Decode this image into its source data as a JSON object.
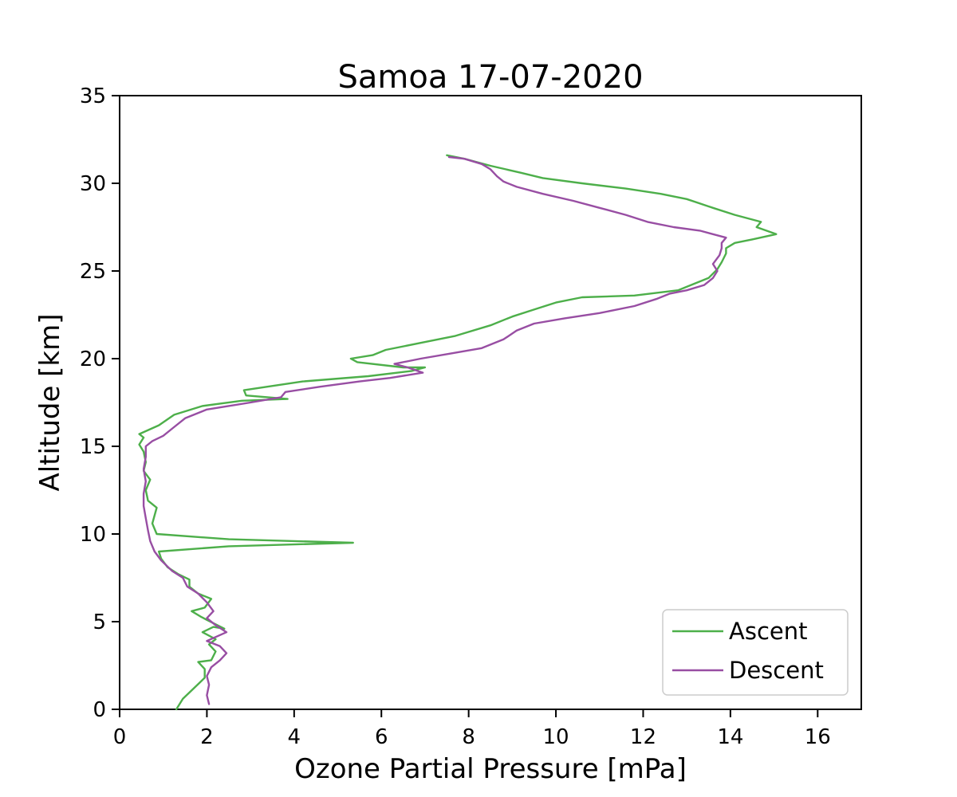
{
  "chart_data": {
    "type": "line",
    "title": "Samoa  17-07-2020",
    "xlabel": "Ozone Partial Pressure [mPa]",
    "ylabel": "Altitude [km]",
    "xlim": [
      0,
      17
    ],
    "ylim": [
      0,
      35
    ],
    "xticks": [
      0,
      2,
      4,
      6,
      8,
      10,
      12,
      14,
      16
    ],
    "yticks": [
      0,
      5,
      10,
      15,
      20,
      25,
      30,
      35
    ],
    "grid": false,
    "legend_position": "lower-right",
    "series": [
      {
        "name": "Ascent",
        "color": "#4daf4a",
        "points": [
          [
            1.3,
            0.0
          ],
          [
            1.45,
            0.6
          ],
          [
            1.7,
            1.2
          ],
          [
            1.95,
            1.8
          ],
          [
            1.95,
            2.3
          ],
          [
            1.8,
            2.7
          ],
          [
            2.1,
            2.8
          ],
          [
            2.2,
            3.3
          ],
          [
            2.05,
            3.7
          ],
          [
            2.2,
            4.0
          ],
          [
            1.9,
            4.4
          ],
          [
            2.15,
            4.7
          ],
          [
            2.4,
            4.6
          ],
          [
            2.0,
            5.1
          ],
          [
            1.85,
            5.3
          ],
          [
            1.65,
            5.6
          ],
          [
            1.95,
            5.8
          ],
          [
            2.1,
            6.3
          ],
          [
            1.8,
            6.6
          ],
          [
            1.6,
            7.0
          ],
          [
            1.6,
            7.4
          ],
          [
            1.35,
            7.7
          ],
          [
            1.1,
            8.1
          ],
          [
            0.95,
            8.6
          ],
          [
            0.9,
            9.0
          ],
          [
            2.5,
            9.3
          ],
          [
            5.35,
            9.5
          ],
          [
            2.5,
            9.7
          ],
          [
            0.85,
            10.0
          ],
          [
            0.75,
            10.6
          ],
          [
            0.85,
            11.5
          ],
          [
            0.65,
            11.9
          ],
          [
            0.6,
            12.5
          ],
          [
            0.7,
            13.1
          ],
          [
            0.55,
            13.6
          ],
          [
            0.6,
            14.1
          ],
          [
            0.55,
            14.7
          ],
          [
            0.45,
            15.1
          ],
          [
            0.55,
            15.5
          ],
          [
            0.45,
            15.7
          ],
          [
            0.9,
            16.2
          ],
          [
            1.25,
            16.8
          ],
          [
            1.9,
            17.3
          ],
          [
            2.8,
            17.6
          ],
          [
            3.85,
            17.7
          ],
          [
            2.9,
            17.9
          ],
          [
            2.85,
            18.2
          ],
          [
            4.2,
            18.7
          ],
          [
            5.7,
            19.0
          ],
          [
            6.7,
            19.3
          ],
          [
            7.0,
            19.5
          ],
          [
            6.5,
            19.5
          ],
          [
            5.45,
            19.8
          ],
          [
            5.3,
            20.0
          ],
          [
            5.8,
            20.2
          ],
          [
            6.1,
            20.5
          ],
          [
            6.9,
            20.9
          ],
          [
            7.7,
            21.3
          ],
          [
            8.5,
            21.9
          ],
          [
            9.0,
            22.4
          ],
          [
            9.5,
            22.8
          ],
          [
            10.0,
            23.2
          ],
          [
            10.6,
            23.5
          ],
          [
            11.8,
            23.6
          ],
          [
            12.8,
            23.9
          ],
          [
            13.2,
            24.3
          ],
          [
            13.5,
            24.6
          ],
          [
            13.7,
            25.1
          ],
          [
            13.8,
            25.5
          ],
          [
            13.9,
            26.0
          ],
          [
            13.9,
            26.3
          ],
          [
            14.1,
            26.6
          ],
          [
            14.5,
            26.8
          ],
          [
            15.05,
            27.1
          ],
          [
            14.6,
            27.5
          ],
          [
            14.7,
            27.8
          ],
          [
            14.1,
            28.2
          ],
          [
            13.6,
            28.6
          ],
          [
            13.0,
            29.1
          ],
          [
            12.4,
            29.4
          ],
          [
            11.6,
            29.7
          ],
          [
            10.6,
            30.0
          ],
          [
            9.7,
            30.3
          ],
          [
            9.2,
            30.6
          ],
          [
            8.5,
            31.0
          ],
          [
            7.9,
            31.4
          ],
          [
            7.5,
            31.6
          ]
        ]
      },
      {
        "name": "Descent",
        "color": "#984ea3",
        "points": [
          [
            2.05,
            0.3
          ],
          [
            2.0,
            0.8
          ],
          [
            2.05,
            1.4
          ],
          [
            2.0,
            1.9
          ],
          [
            2.1,
            2.4
          ],
          [
            2.3,
            2.8
          ],
          [
            2.45,
            3.2
          ],
          [
            2.3,
            3.6
          ],
          [
            2.0,
            3.9
          ],
          [
            2.45,
            4.4
          ],
          [
            2.2,
            4.8
          ],
          [
            2.0,
            5.2
          ],
          [
            2.15,
            5.6
          ],
          [
            2.0,
            6.1
          ],
          [
            1.8,
            6.6
          ],
          [
            1.55,
            7.0
          ],
          [
            1.45,
            7.5
          ],
          [
            1.2,
            7.9
          ],
          [
            0.95,
            8.5
          ],
          [
            0.8,
            9.0
          ],
          [
            0.7,
            9.6
          ],
          [
            0.65,
            10.2
          ],
          [
            0.6,
            10.9
          ],
          [
            0.55,
            11.6
          ],
          [
            0.55,
            12.3
          ],
          [
            0.6,
            13.0
          ],
          [
            0.55,
            13.7
          ],
          [
            0.6,
            14.4
          ],
          [
            0.6,
            15.0
          ],
          [
            0.75,
            15.3
          ],
          [
            1.0,
            15.6
          ],
          [
            1.2,
            16.0
          ],
          [
            1.5,
            16.6
          ],
          [
            2.0,
            17.1
          ],
          [
            3.0,
            17.5
          ],
          [
            3.7,
            17.8
          ],
          [
            3.8,
            18.1
          ],
          [
            4.6,
            18.4
          ],
          [
            5.5,
            18.7
          ],
          [
            6.2,
            18.9
          ],
          [
            6.95,
            19.2
          ],
          [
            6.6,
            19.5
          ],
          [
            6.3,
            19.7
          ],
          [
            6.9,
            20.0
          ],
          [
            7.6,
            20.3
          ],
          [
            8.3,
            20.6
          ],
          [
            8.8,
            21.1
          ],
          [
            9.1,
            21.6
          ],
          [
            9.5,
            22.0
          ],
          [
            10.2,
            22.3
          ],
          [
            11.0,
            22.6
          ],
          [
            11.8,
            23.0
          ],
          [
            12.3,
            23.4
          ],
          [
            12.6,
            23.7
          ],
          [
            13.0,
            23.9
          ],
          [
            13.4,
            24.2
          ],
          [
            13.6,
            24.6
          ],
          [
            13.7,
            25.0
          ],
          [
            13.6,
            25.4
          ],
          [
            13.75,
            25.9
          ],
          [
            13.8,
            26.3
          ],
          [
            13.8,
            26.6
          ],
          [
            13.9,
            26.9
          ],
          [
            13.3,
            27.3
          ],
          [
            12.7,
            27.5
          ],
          [
            12.1,
            27.8
          ],
          [
            11.6,
            28.2
          ],
          [
            11.0,
            28.6
          ],
          [
            10.4,
            29.0
          ],
          [
            9.7,
            29.4
          ],
          [
            9.1,
            29.8
          ],
          [
            8.8,
            30.1
          ],
          [
            8.65,
            30.4
          ],
          [
            8.5,
            30.8
          ],
          [
            8.3,
            31.1
          ],
          [
            7.9,
            31.4
          ],
          [
            7.55,
            31.5
          ]
        ]
      }
    ]
  }
}
